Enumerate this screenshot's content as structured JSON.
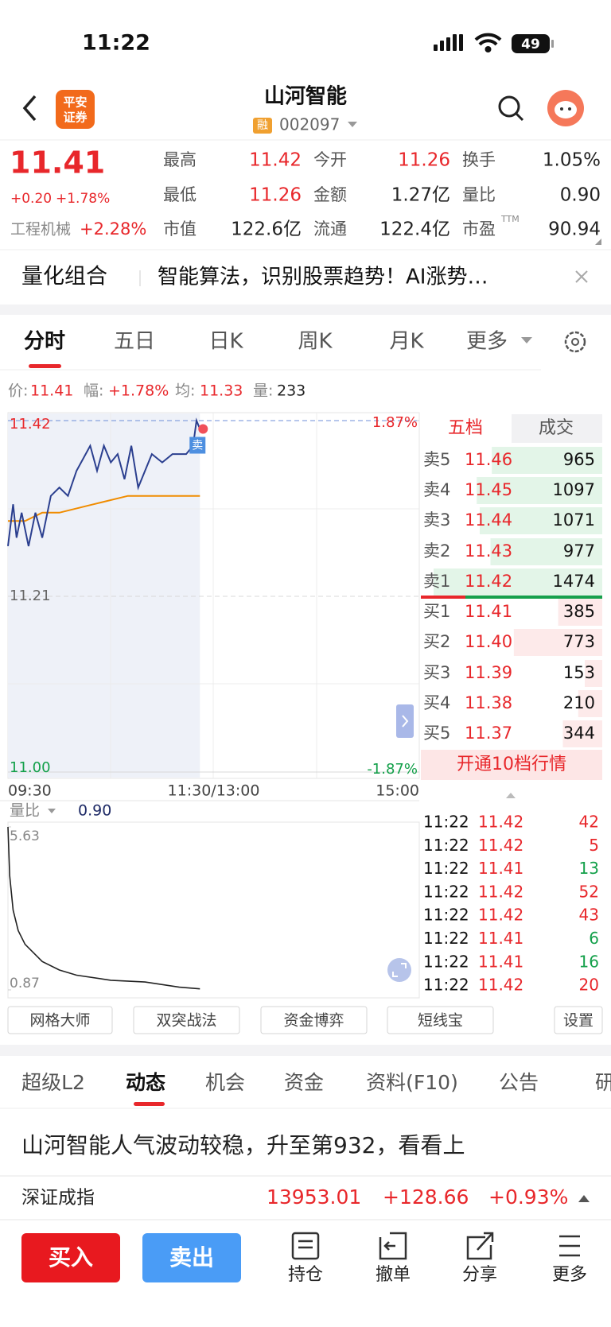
{
  "status": {
    "time": "11:22",
    "battery": "49"
  },
  "header": {
    "broker": [
      "平安",
      "证券"
    ],
    "title": "山河智能",
    "badge": "融",
    "code": "002097"
  },
  "quote": {
    "price": "11.41",
    "change": "+0.20",
    "pct": "+1.78%",
    "industry": "工程机械",
    "industry_pct": "+2.28%",
    "stats": [
      {
        "label": "最高",
        "value": "11.42",
        "color": "#e8272b"
      },
      {
        "label": "今开",
        "value": "11.26",
        "color": "#e8272b"
      },
      {
        "label": "换手",
        "value": "1.05%",
        "color": "#222222"
      },
      {
        "label": "最低",
        "value": "11.26",
        "color": "#e8272b"
      },
      {
        "label": "金额",
        "value": "1.27亿",
        "color": "#222222"
      },
      {
        "label": "量比",
        "value": "0.90",
        "color": "#222222"
      },
      {
        "label": "市值",
        "value": "122.6亿",
        "color": "#222222"
      },
      {
        "label": "流通",
        "value": "122.4亿",
        "color": "#222222"
      },
      {
        "label": "市盈",
        "sup": "TTM",
        "value": "90.94",
        "color": "#222222"
      }
    ]
  },
  "banner": {
    "title": "量化组合",
    "text": "智能算法，识别股票趋势！AI涨势…"
  },
  "tabs": [
    "分时",
    "五日",
    "日K",
    "周K",
    "月K",
    "更多"
  ],
  "info": {
    "price_label": "价:",
    "price": "11.41",
    "amp_label": "幅:",
    "amp": "+1.78%",
    "avg_label": "均:",
    "avg": "11.33",
    "vol_label": "量:",
    "vol": "233"
  },
  "intraday": {
    "type": "line",
    "xticks": [
      "09:30",
      "11:30/13:00",
      "15:00"
    ],
    "ylim": [
      11.0,
      11.42
    ],
    "yticks": [
      11.42,
      11.21,
      {
        "value": 11,
        "label": "11.00"
      }
    ],
    "y2lim": [
      -1.87,
      1.87
    ],
    "y2ticks": [
      {
        "value": 1.87,
        "label": "1.87%"
      },
      {
        "value": -1.87,
        "label": "-1.87%"
      }
    ],
    "marker": "卖",
    "price": {
      "color": "#2b3f8f",
      "x": [
        "09:30",
        "09:33",
        "09:35",
        "09:38",
        "09:42",
        "09:46",
        "09:50",
        "09:55",
        "10:00",
        "10:05",
        "10:10",
        "10:18",
        "10:22",
        "10:26",
        "10:30",
        "10:34",
        "10:38",
        "10:42",
        "10:46",
        "10:50",
        "10:54",
        "11:00",
        "11:06",
        "11:10",
        "11:14",
        "11:18",
        "11:20",
        "11:22"
      ],
      "values": [
        11.27,
        11.32,
        11.28,
        11.31,
        11.27,
        11.31,
        11.28,
        11.33,
        11.34,
        11.33,
        11.36,
        11.39,
        11.36,
        11.39,
        11.37,
        11.38,
        11.35,
        11.39,
        11.34,
        11.36,
        11.38,
        11.37,
        11.38,
        11.38,
        11.38,
        11.39,
        11.42,
        11.41
      ]
    },
    "avg": {
      "color": "#f08c00",
      "x": [
        "09:30",
        "09:40",
        "09:50",
        "10:00",
        "10:20",
        "10:40",
        "11:00",
        "11:22"
      ],
      "values": [
        11.3,
        11.3,
        11.31,
        11.31,
        11.32,
        11.33,
        11.33,
        11.33
      ]
    }
  },
  "ratio": {
    "type": "line",
    "label": "量比",
    "value": "0.90",
    "ylim": [
      0.87,
      5.63
    ],
    "yticks": [
      5.63,
      0.87
    ],
    "series": {
      "color": "#222222",
      "x": [
        "09:30",
        "09:31",
        "09:33",
        "09:36",
        "09:40",
        "09:50",
        "10:00",
        "10:10",
        "10:30",
        "10:50",
        "11:10",
        "11:22"
      ],
      "values": [
        5.63,
        4.2,
        3.2,
        2.6,
        2.2,
        1.7,
        1.45,
        1.3,
        1.15,
        1.1,
        0.95,
        0.9
      ]
    }
  },
  "orderbook": {
    "tabs": [
      "五档",
      "成交"
    ],
    "asks": [
      {
        "label": "卖5",
        "price": "11.46",
        "vol": 965
      },
      {
        "label": "卖4",
        "price": "11.45",
        "vol": 1097
      },
      {
        "label": "卖3",
        "price": "11.44",
        "vol": 1071
      },
      {
        "label": "卖2",
        "price": "11.43",
        "vol": 977
      },
      {
        "label": "卖1",
        "price": "11.42",
        "vol": 1474
      }
    ],
    "bids": [
      {
        "label": "买1",
        "price": "11.41",
        "vol": 385
      },
      {
        "label": "买2",
        "price": "11.40",
        "vol": 773
      },
      {
        "label": "买3",
        "price": "11.39",
        "vol": 153
      },
      {
        "label": "买4",
        "price": "11.38",
        "vol": 210
      },
      {
        "label": "买5",
        "price": "11.37",
        "vol": 344
      }
    ],
    "upgrade": "开通10档行情"
  },
  "trades": [
    {
      "time": "11:22",
      "price": "11.42",
      "vol": 42,
      "color": "#e8272b"
    },
    {
      "time": "11:22",
      "price": "11.42",
      "vol": 5,
      "color": "#e8272b"
    },
    {
      "time": "11:22",
      "price": "11.41",
      "vol": 13,
      "color": "#13a04a"
    },
    {
      "time": "11:22",
      "price": "11.42",
      "vol": 52,
      "color": "#e8272b"
    },
    {
      "time": "11:22",
      "price": "11.42",
      "vol": 43,
      "color": "#e8272b"
    },
    {
      "time": "11:22",
      "price": "11.41",
      "vol": 6,
      "color": "#13a04a"
    },
    {
      "time": "11:22",
      "price": "11.41",
      "vol": 16,
      "color": "#13a04a"
    },
    {
      "time": "11:22",
      "price": "11.42",
      "vol": 20,
      "color": "#e8272b"
    }
  ],
  "tools": [
    "网格大师",
    "双突战法",
    "资金博弈",
    "短线宝",
    "设置"
  ],
  "news_tabs": [
    "超级L2",
    "动态",
    "机会",
    "资金",
    "资料(F10)",
    "公告",
    "研报"
  ],
  "news": "山河智能人气波动较稳，升至第932，看看上",
  "index": {
    "name": "深证成指",
    "value": "13953.01",
    "change": "+128.66",
    "pct": "+0.93%"
  },
  "bottom": {
    "buy": "买入",
    "sell": "卖出",
    "actions": [
      "持仓",
      "撤单",
      "分享",
      "更多"
    ]
  }
}
